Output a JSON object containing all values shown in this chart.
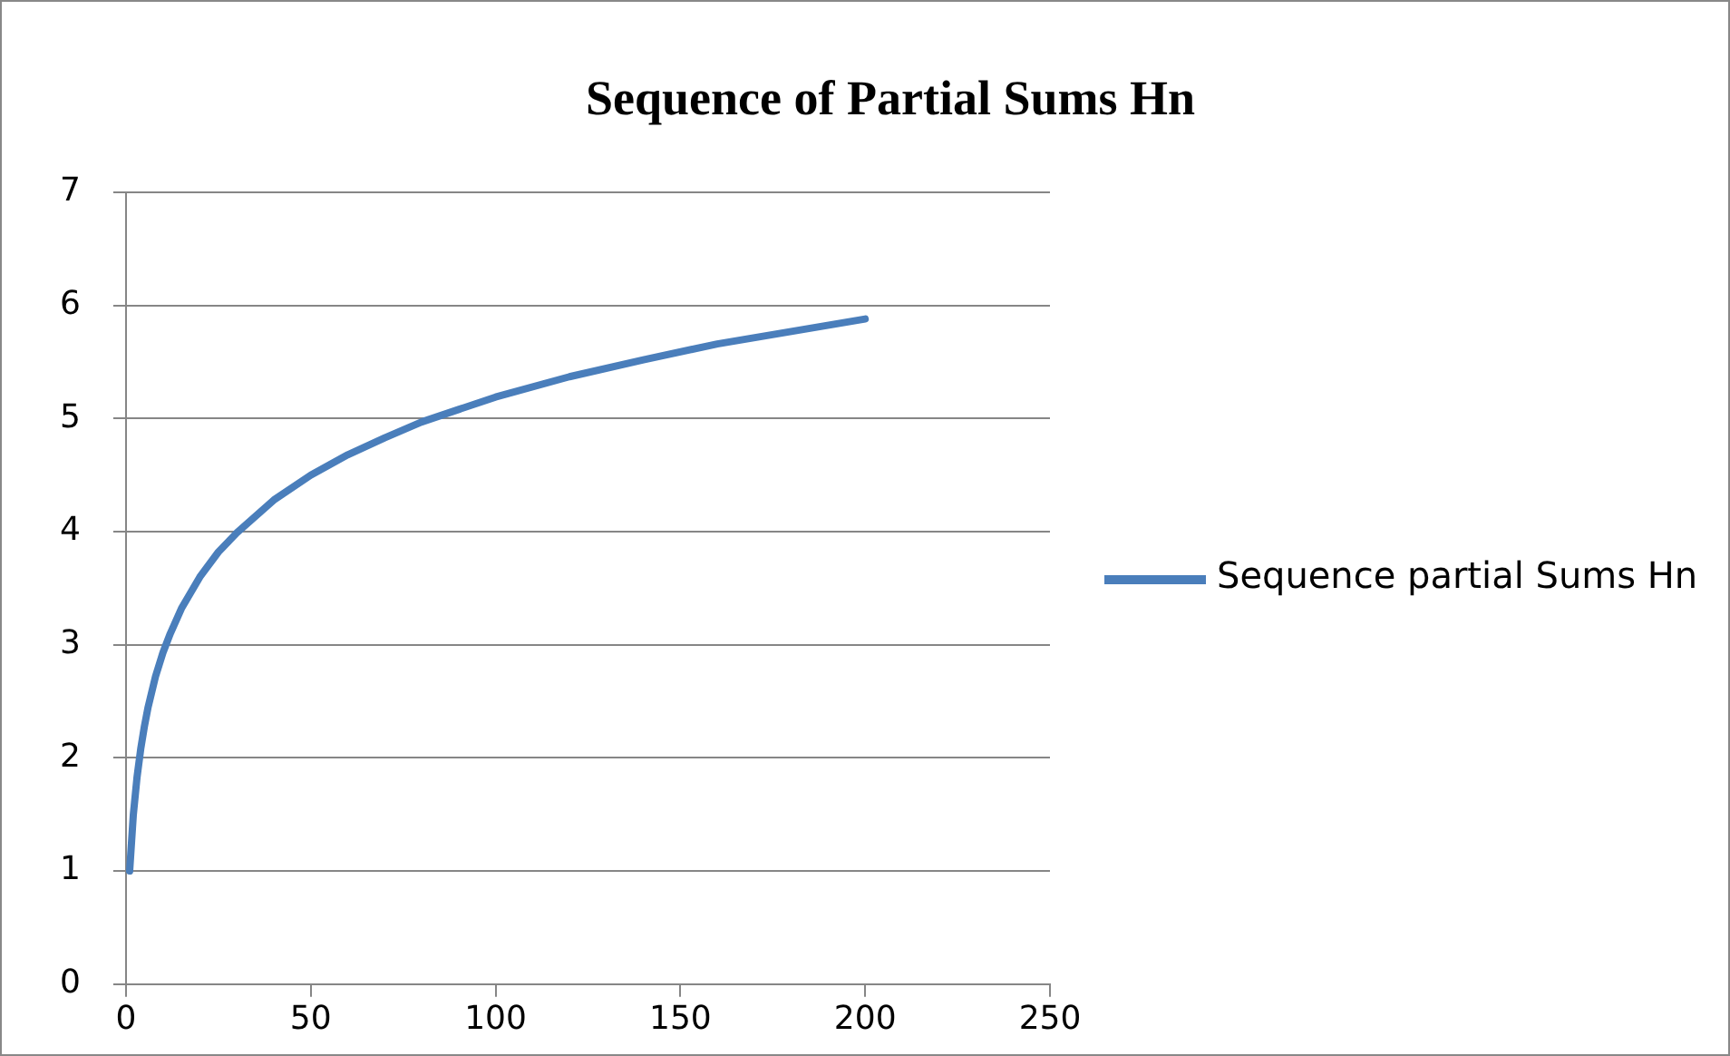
{
  "chart_data": {
    "type": "line",
    "title": "Sequence of Partial Sums Hn",
    "x": [
      1,
      2,
      3,
      4,
      5,
      6,
      8,
      10,
      12,
      15,
      20,
      25,
      30,
      40,
      50,
      60,
      70,
      80,
      90,
      100,
      120,
      140,
      160,
      180,
      200
    ],
    "series": [
      {
        "name": "Sequence partial Sums Hn",
        "color": "#4a7ebb",
        "values": [
          1,
          1.5,
          1.83,
          2.08,
          2.28,
          2.45,
          2.72,
          2.93,
          3.1,
          3.32,
          3.6,
          3.82,
          3.99,
          4.28,
          4.5,
          4.68,
          4.83,
          4.97,
          5.08,
          5.19,
          5.37,
          5.52,
          5.66,
          5.77,
          5.88
        ]
      }
    ],
    "xlim": [
      0,
      250
    ],
    "xticks": [
      0,
      50,
      100,
      150,
      200,
      250
    ],
    "ylim": [
      0,
      7
    ],
    "yticks": [
      0,
      1,
      2,
      3,
      4,
      5,
      6,
      7
    ],
    "grid": "y",
    "legend": "right",
    "marker": "none",
    "line_style": "solid"
  }
}
